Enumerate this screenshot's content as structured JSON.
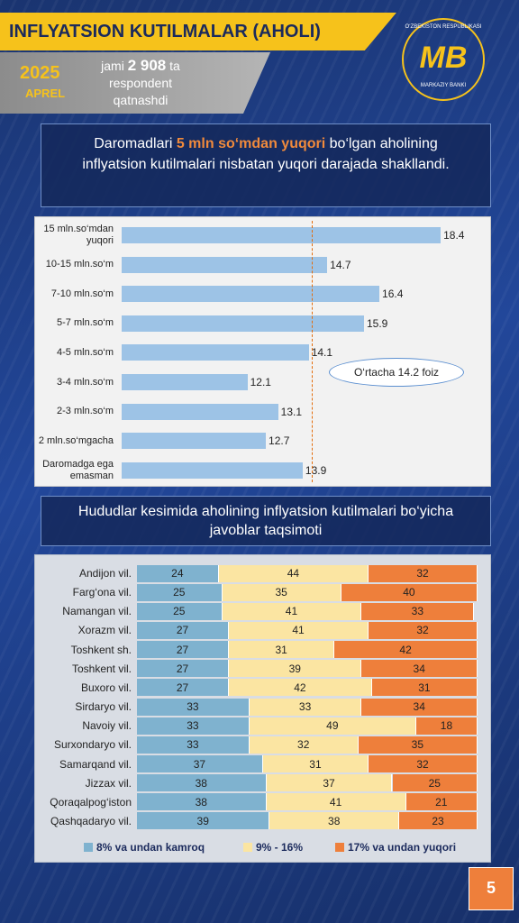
{
  "header": {
    "title": "INFLYATSION KUTILMALAR (AHOLI)",
    "year": "2025",
    "month": "APREL",
    "respondents_pre": "jami",
    "respondents_count": "2 908",
    "respondents_post": "ta respondent qatnashdi",
    "logo_mark": "MB",
    "logo_top": "O‘ZBEKISTON RESPUBLIKASI",
    "logo_bottom": "MARKAZIY BANKI"
  },
  "headline": {
    "before": "Daromadlari",
    "highlight": "5 mln so‘mdan yuqori",
    "after": "bo‘lgan aholining inflyatsion kutilmalari nisbatan yuqori darajada shakllandi."
  },
  "section_title": "Hududlar kesimida aholining inflyatsion kutilmalari bo‘yicha javoblar taqsimoti",
  "page_number": "5",
  "chart_data": [
    {
      "type": "hbar",
      "categories": [
        "15 mln.so‘mdan yuqori",
        "10-15 mln.so‘m",
        "7-10 mln.so‘m",
        "5-7 mln.so‘m",
        "4-5 mln.so‘m",
        "3-4 mln.so‘m",
        "2-3 mln.so‘m",
        "2 mln.so‘mgacha",
        "Daromadga ega emasman"
      ],
      "values": [
        18.4,
        14.7,
        16.4,
        15.9,
        14.1,
        12.1,
        13.1,
        12.7,
        13.9
      ],
      "color": "#9dc3e6",
      "xlim": [
        8,
        19.6
      ],
      "average": 14.2,
      "average_color": "#e46c0a",
      "annotation": "O‘rtacha 14.2 foiz"
    },
    {
      "type": "stacked_hbar",
      "categories": [
        "Andijon vil.",
        "Farg‘ona vil.",
        "Namangan vil.",
        "Xorazm vil.",
        "Toshkent sh.",
        "Toshkent vil.",
        "Buxoro vil.",
        "Sirdaryo vil.",
        "Navoiy vil.",
        "Surxondaryo vil.",
        "Samarqand vil.",
        "Jizzax vil.",
        "Qoraqalpog‘iston",
        "Qashqadaryo vil."
      ],
      "xlim": [
        0,
        100
      ],
      "series": [
        {
          "name": "8% va undan kamroq",
          "color": "#7fb2cf",
          "values": [
            24,
            25,
            25,
            27,
            27,
            27,
            27,
            33,
            33,
            33,
            37,
            38,
            38,
            39
          ]
        },
        {
          "name": "9% - 16%",
          "color": "#fbe5a2",
          "values": [
            44,
            35,
            41,
            41,
            31,
            39,
            42,
            33,
            49,
            32,
            31,
            37,
            41,
            38
          ]
        },
        {
          "name": "17% va undan yuqori",
          "color": "#ee7f3b",
          "values": [
            32,
            40,
            33,
            32,
            42,
            34,
            31,
            34,
            18,
            35,
            32,
            25,
            21,
            23
          ]
        }
      ]
    }
  ]
}
